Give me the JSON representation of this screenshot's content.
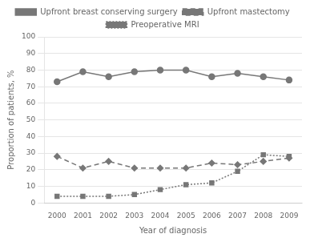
{
  "chart_data": {
    "type": "line",
    "x": [
      2000,
      2001,
      2002,
      2003,
      2004,
      2005,
      2006,
      2007,
      2008,
      2009
    ],
    "series": [
      {
        "name": "Upfront breast conserving surgery",
        "color": "#777777",
        "line_style": "solid",
        "marker": "circle",
        "values": [
          73,
          79,
          76,
          79,
          80,
          80,
          76,
          78,
          76,
          74
        ]
      },
      {
        "name": "Upfront mastectomy",
        "color": "#777777",
        "line_style": "dashed",
        "marker": "diamond",
        "values": [
          28,
          21,
          25,
          21,
          21,
          21,
          24,
          23,
          25,
          27
        ]
      },
      {
        "name": "Preoperative MRI",
        "color": "#777777",
        "line_style": "dotted",
        "marker": "square",
        "values": [
          4,
          4,
          4,
          5,
          8,
          11,
          12,
          19,
          29,
          28
        ]
      }
    ],
    "x_label": "Year of diagnosis",
    "y_label": "Proportion of patients, %",
    "xlim": [
      1999.5,
      2009.5
    ],
    "xticks": [
      2000,
      2001,
      2002,
      2003,
      2004,
      2005,
      2006,
      2007,
      2008,
      2009
    ],
    "ylim": [
      0,
      100
    ],
    "yticks": [
      0,
      10,
      20,
      30,
      40,
      50,
      60,
      70,
      80,
      90,
      100
    ],
    "grid": true,
    "legend": "top"
  }
}
